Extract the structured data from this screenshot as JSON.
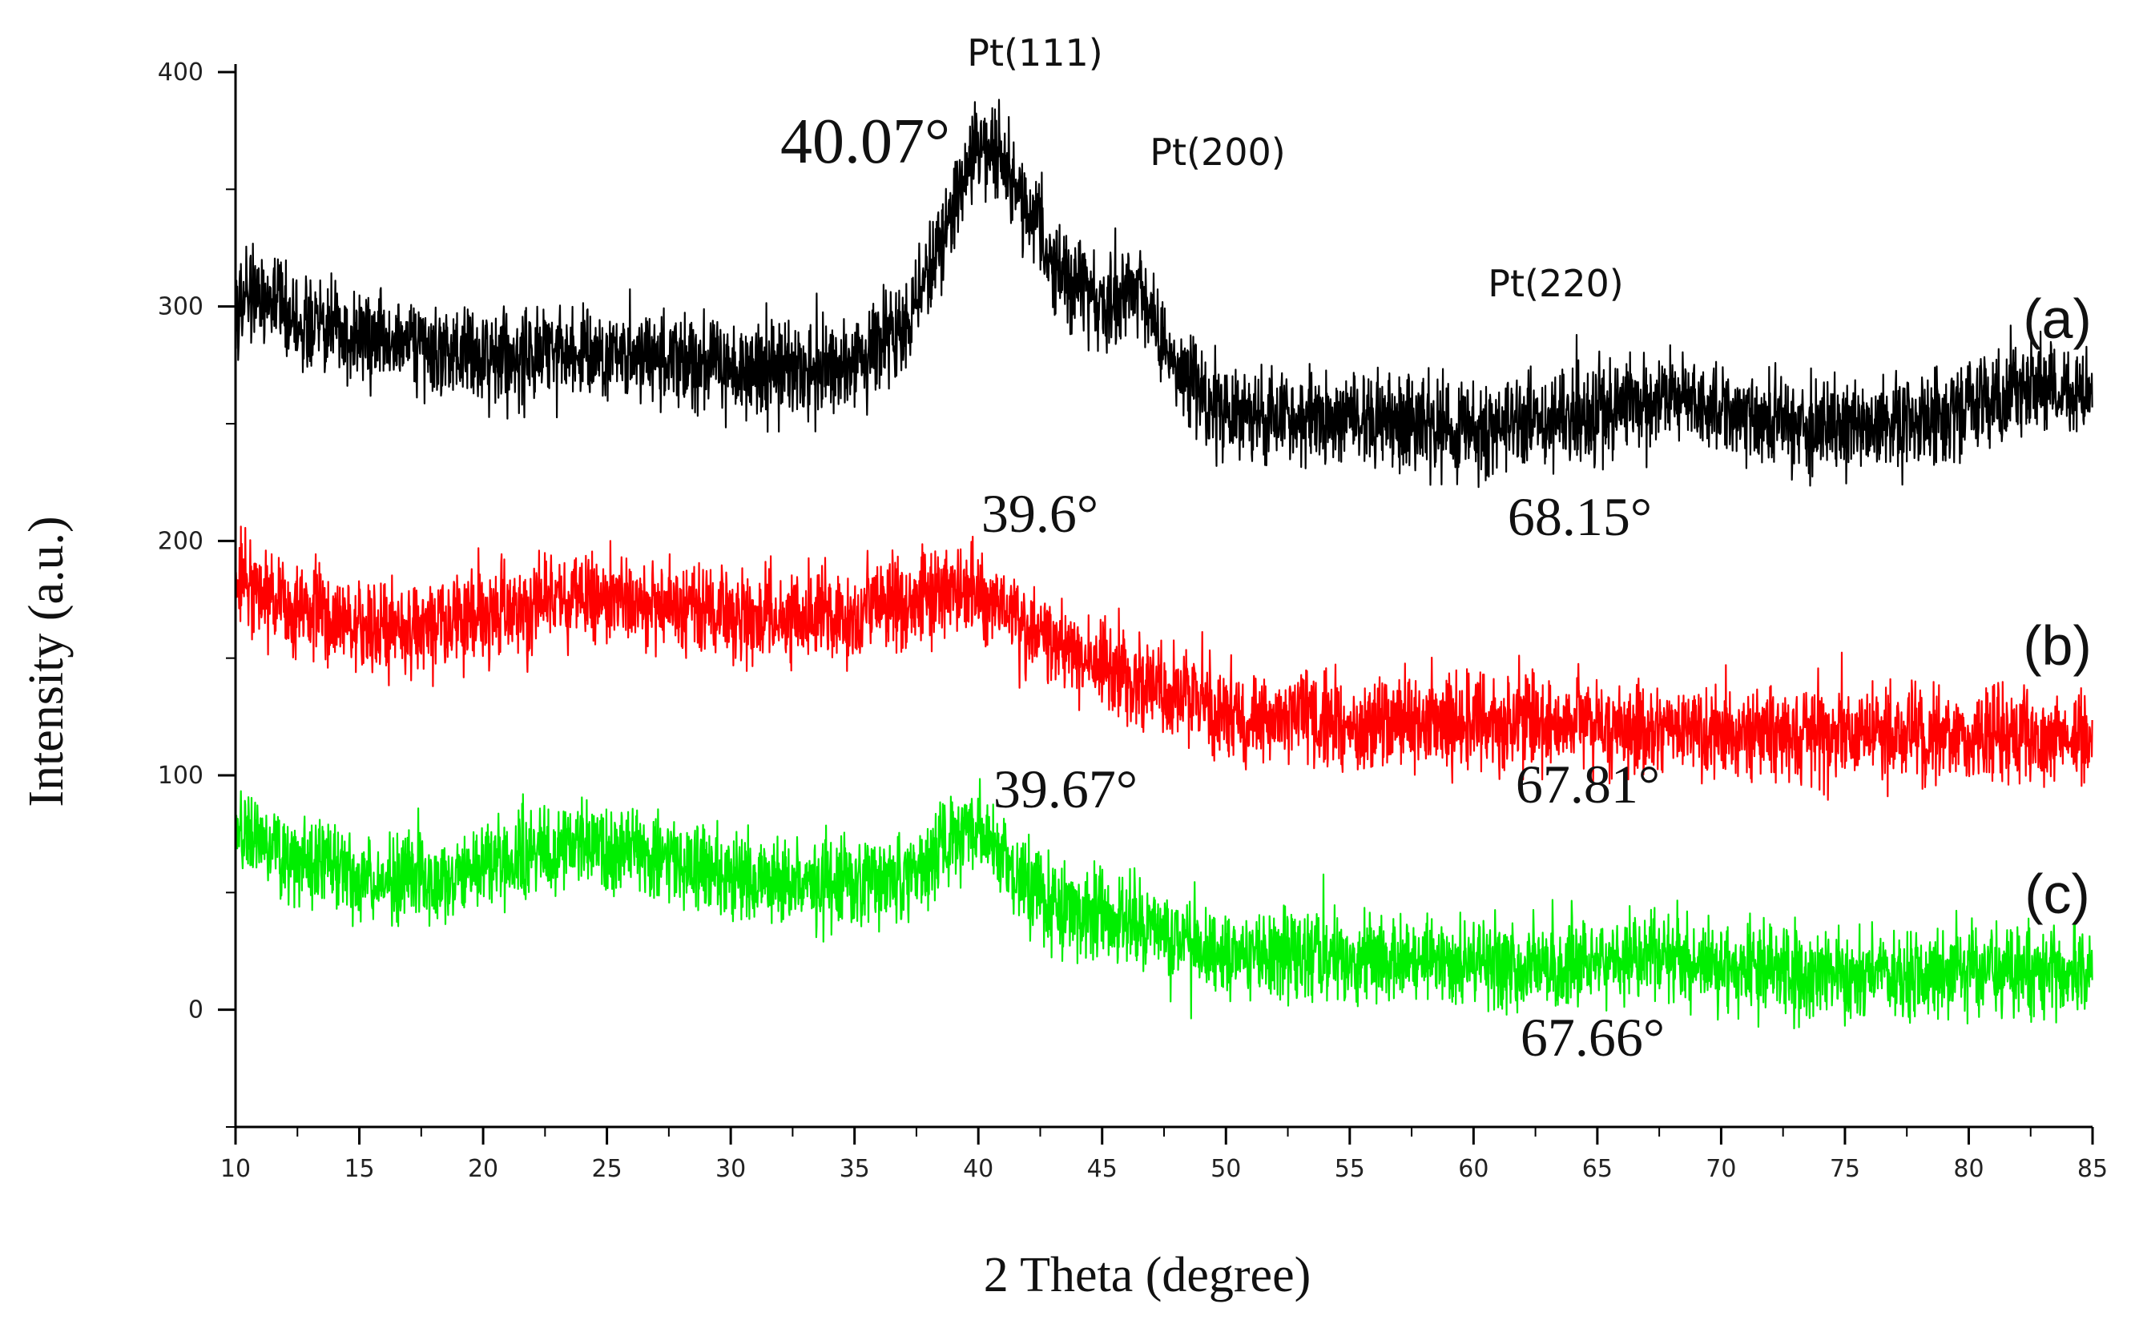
{
  "chart_data": {
    "type": "line",
    "title": "",
    "xlabel": "2 Theta (degree)",
    "ylabel": "Intensity (a.u.)",
    "xlim": [
      10,
      85
    ],
    "ylim": [
      -50,
      400
    ],
    "xticks": [
      10,
      15,
      20,
      25,
      30,
      35,
      40,
      45,
      50,
      55,
      60,
      65,
      70,
      75,
      80,
      85
    ],
    "yticks": [
      0,
      100,
      200,
      300,
      400
    ],
    "grid": false,
    "series": [
      {
        "name": "(a)",
        "color": "#000000",
        "noise": 14,
        "baseline_points": [
          [
            10,
            305
          ],
          [
            13,
            292
          ],
          [
            15,
            286
          ],
          [
            20,
            279
          ],
          [
            25,
            281
          ],
          [
            30,
            274
          ],
          [
            33,
            271
          ],
          [
            35,
            276
          ],
          [
            37,
            290
          ],
          [
            38.5,
            325
          ],
          [
            39.5,
            355
          ],
          [
            40.07,
            372
          ],
          [
            41,
            362
          ],
          [
            42,
            340
          ],
          [
            43,
            318
          ],
          [
            44.5,
            306
          ],
          [
            45.5,
            301
          ],
          [
            46.2,
            312
          ],
          [
            47,
            295
          ],
          [
            48,
            272
          ],
          [
            50,
            254
          ],
          [
            55,
            251
          ],
          [
            60,
            248
          ],
          [
            64,
            251
          ],
          [
            66,
            257
          ],
          [
            68.15,
            262
          ],
          [
            70,
            256
          ],
          [
            72,
            250
          ],
          [
            75,
            248
          ],
          [
            78,
            251
          ],
          [
            80,
            258
          ],
          [
            82,
            266
          ],
          [
            85,
            260
          ]
        ]
      },
      {
        "name": "(b)",
        "color": "#ff0000",
        "noise": 14,
        "baseline_points": [
          [
            10,
            185
          ],
          [
            12,
            172
          ],
          [
            15,
            163
          ],
          [
            18,
            162
          ],
          [
            20,
            168
          ],
          [
            23,
            176
          ],
          [
            25,
            177
          ],
          [
            28,
            172
          ],
          [
            30,
            168
          ],
          [
            33,
            167
          ],
          [
            36,
            171
          ],
          [
            38,
            177
          ],
          [
            39.6,
            180
          ],
          [
            41,
            170
          ],
          [
            43,
            156
          ],
          [
            45,
            147
          ],
          [
            47,
            138
          ],
          [
            50,
            126
          ],
          [
            55,
            122
          ],
          [
            60,
            121
          ],
          [
            65,
            121
          ],
          [
            67.81,
            120
          ],
          [
            70,
            118
          ],
          [
            75,
            116
          ],
          [
            80,
            117
          ],
          [
            85,
            116
          ]
        ]
      },
      {
        "name": "(c)",
        "color": "#00ee00",
        "noise": 13,
        "baseline_points": [
          [
            10,
            77
          ],
          [
            12,
            66
          ],
          [
            15,
            57
          ],
          [
            18,
            56
          ],
          [
            20,
            60
          ],
          [
            22,
            67
          ],
          [
            24,
            71
          ],
          [
            26,
            67
          ],
          [
            28,
            60
          ],
          [
            30,
            56
          ],
          [
            33,
            53
          ],
          [
            36,
            55
          ],
          [
            38,
            62
          ],
          [
            39.67,
            77
          ],
          [
            40.5,
            72
          ],
          [
            41.5,
            56
          ],
          [
            43,
            45
          ],
          [
            45,
            40
          ],
          [
            46.5,
            37
          ],
          [
            48,
            30
          ],
          [
            50,
            26
          ],
          [
            55,
            22
          ],
          [
            60,
            20
          ],
          [
            65,
            20
          ],
          [
            67.66,
            23
          ],
          [
            70,
            19
          ],
          [
            75,
            14
          ],
          [
            80,
            16
          ],
          [
            85,
            17
          ]
        ]
      }
    ],
    "annotations": {
      "pt111": "Pt(111)",
      "pt200": "Pt(200)",
      "pt220": "Pt(220)",
      "a_peak1": "40.07°",
      "a_peak3": "68.15°",
      "b_peak1": "39.6°",
      "b_peak3": "67.81°",
      "c_peak1": "39.67°",
      "c_peak3": "67.66°"
    },
    "series_tags": {
      "a": "(a)",
      "b": "(b)",
      "c": "(c)"
    }
  }
}
